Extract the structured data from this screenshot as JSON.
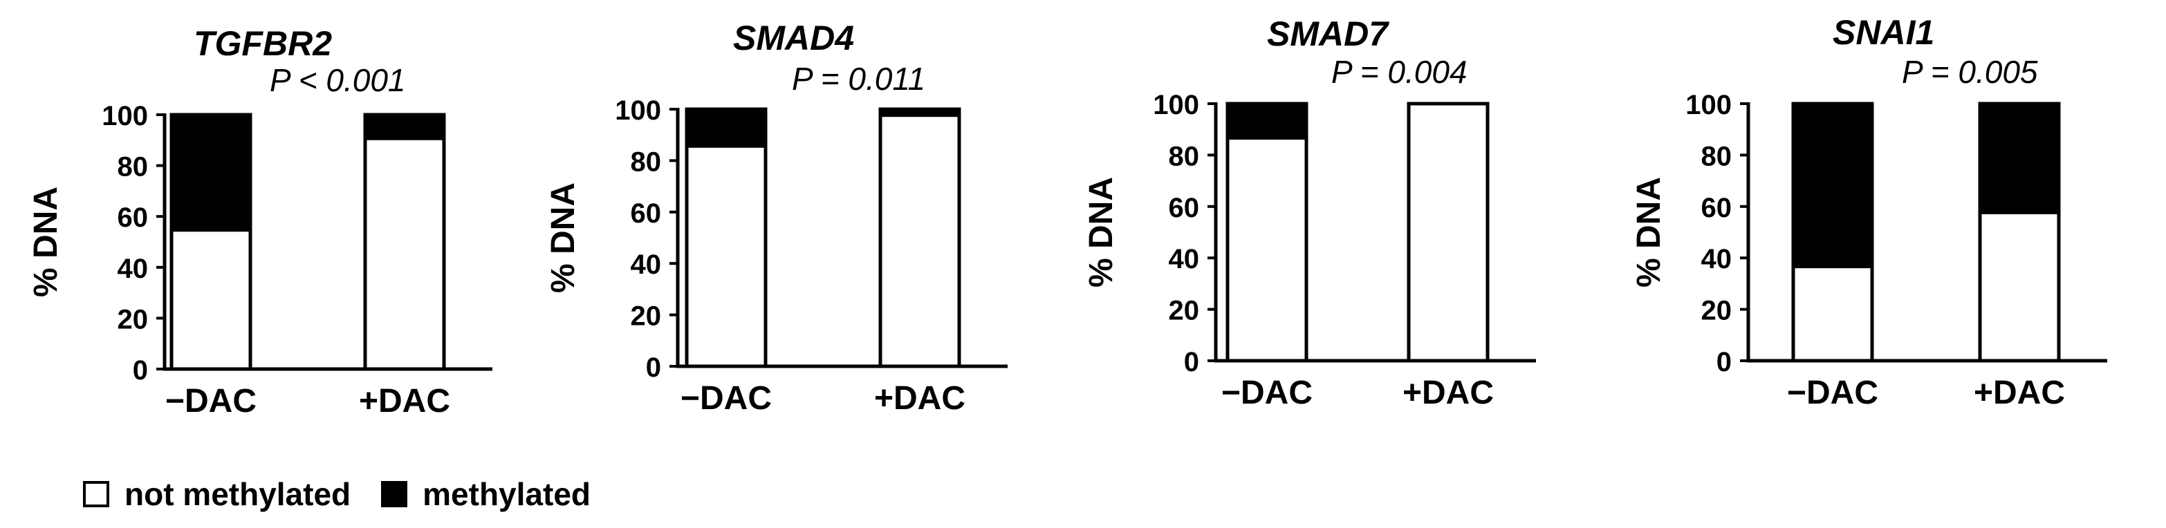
{
  "chart_data": [
    {
      "type": "bar",
      "stacked": true,
      "title": "TGFBR2",
      "annotation": "P < 0.001",
      "ylabel": "% DNA",
      "ylim": [
        0,
        100
      ],
      "yticks": [
        0,
        20,
        40,
        60,
        80,
        100
      ],
      "categories": [
        "−DAC",
        "+DAC"
      ],
      "series": [
        {
          "name": "not methylated",
          "values": [
            54,
            90
          ]
        },
        {
          "name": "methylated",
          "values": [
            46,
            10
          ]
        }
      ]
    },
    {
      "type": "bar",
      "stacked": true,
      "title": "SMAD4",
      "annotation": "P = 0.011",
      "ylabel": "% DNA",
      "ylim": [
        0,
        100
      ],
      "yticks": [
        0,
        20,
        40,
        60,
        80,
        100
      ],
      "categories": [
        "−DAC",
        "+DAC"
      ],
      "series": [
        {
          "name": "not methylated",
          "values": [
            85,
            97
          ]
        },
        {
          "name": "methylated",
          "values": [
            15,
            3
          ]
        }
      ]
    },
    {
      "type": "bar",
      "stacked": true,
      "title": "SMAD7",
      "annotation": "P = 0.004",
      "ylabel": "% DNA",
      "ylim": [
        0,
        100
      ],
      "yticks": [
        0,
        20,
        40,
        60,
        80,
        100
      ],
      "categories": [
        "−DAC",
        "+DAC"
      ],
      "series": [
        {
          "name": "not methylated",
          "values": [
            86,
            100
          ]
        },
        {
          "name": "methylated",
          "values": [
            14,
            0
          ]
        }
      ]
    },
    {
      "type": "bar",
      "stacked": true,
      "title": "SNAI1",
      "annotation": "P = 0.005",
      "ylabel": "% DNA",
      "ylim": [
        0,
        100
      ],
      "yticks": [
        0,
        20,
        40,
        60,
        80,
        100
      ],
      "categories": [
        "−DAC",
        "+DAC"
      ],
      "series": [
        {
          "name": "not methylated",
          "values": [
            36,
            57
          ]
        },
        {
          "name": "methylated",
          "values": [
            64,
            43
          ]
        }
      ]
    }
  ],
  "legend": {
    "placement": "bottom-left",
    "items": [
      {
        "label": "not methylated",
        "color": "#ffffff"
      },
      {
        "label": "methylated",
        "color": "#000000"
      }
    ]
  }
}
